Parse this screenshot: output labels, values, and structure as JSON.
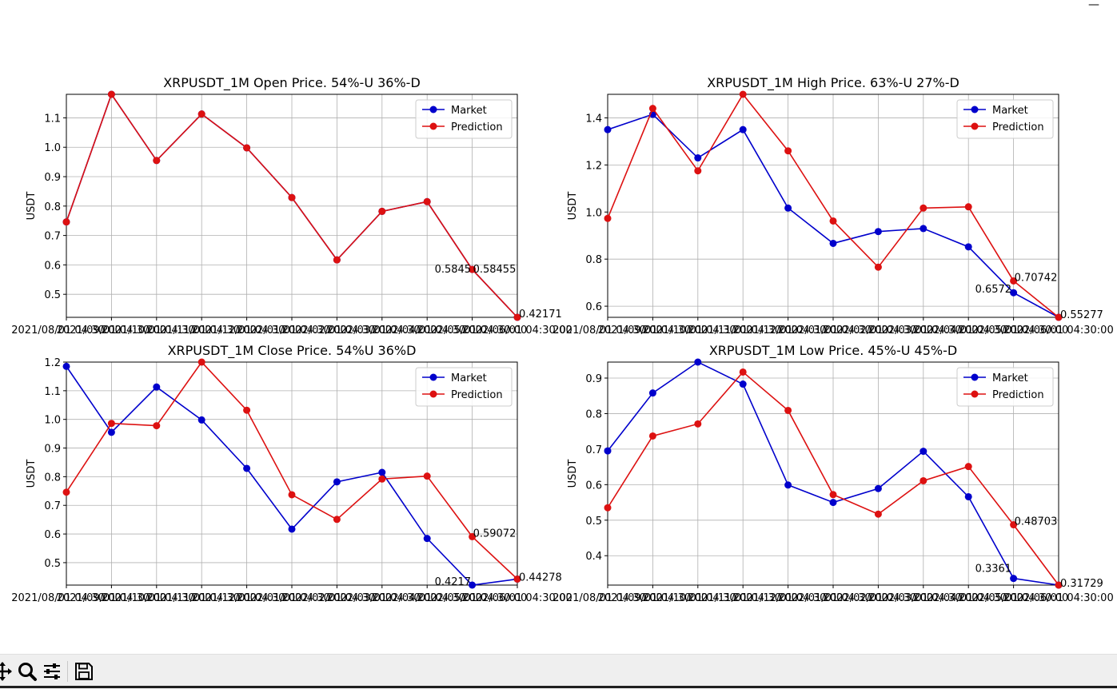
{
  "window": {
    "minimize_label": "—"
  },
  "toolbar": {
    "buttons": [
      {
        "name": "pan-icon"
      },
      {
        "name": "zoom-icon"
      },
      {
        "name": "configure-subplots-icon"
      },
      {
        "name": "save-icon"
      }
    ]
  },
  "colors": {
    "market": "#0000cc",
    "prediction": "#dd1111",
    "grid": "#b0b0b0"
  },
  "chart_data": [
    {
      "type": "line",
      "title": "XRPUSDT_1M Open Price. 54%-U 36%-D",
      "xlabel": "",
      "ylabel": "USDT",
      "x": [
        "2021/08/01 04:30:00",
        "2021/09/01 04:30:00",
        "2021/10/01 04:30:00",
        "2021/11/01 04:30:00",
        "2021/12/01 04:30:00",
        "2022/01/01 04:30:00",
        "2022/02/01 04:30:00",
        "2022/03/01 04:30:00",
        "2022/04/01 04:30:00",
        "2022/05/01 04:30:00",
        "2022/06/01 04:30:00"
      ],
      "ylim": [
        0.42171,
        1.18
      ],
      "yticks": [
        0.5,
        0.6,
        0.7,
        0.8,
        0.9,
        1.0,
        1.1
      ],
      "ytick_labels": [
        "0.5",
        "0.6",
        "0.7",
        "0.8",
        "0.9",
        "1.0",
        "1.1"
      ],
      "series": [
        {
          "name": "Market",
          "values": [
            0.746,
            1.18,
            0.955,
            1.113,
            0.998,
            0.829,
            0.617,
            0.782,
            0.815,
            0.5845,
            0.4217
          ]
        },
        {
          "name": "Prediction",
          "values": [
            0.746,
            1.18,
            0.955,
            1.113,
            0.998,
            0.829,
            0.617,
            0.782,
            0.815,
            0.58455,
            0.42171
          ]
        }
      ],
      "annotations": [
        "0.5845",
        "0.58455",
        "0.42171"
      ],
      "legend": "top-right"
    },
    {
      "type": "line",
      "title": "XRPUSDT_1M High Price. 63%-U 27%-D",
      "xlabel": "",
      "ylabel": "USDT",
      "x": [
        "2021/08/01 04:30:00",
        "2021/09/01 04:30:00",
        "2021/10/01 04:30:00",
        "2021/11/01 04:30:00",
        "2021/12/01 04:30:00",
        "2022/01/01 04:30:00",
        "2022/02/01 04:30:00",
        "2022/03/01 04:30:00",
        "2022/04/01 04:30:00",
        "2022/05/01 04:30:00",
        "2022/06/01 04:30:00"
      ],
      "ylim": [
        0.55277,
        1.5
      ],
      "yticks": [
        0.6,
        0.8,
        1.0,
        1.2,
        1.4
      ],
      "ytick_labels": [
        "0.6",
        "0.8",
        "1.0",
        "1.2",
        "1.4"
      ],
      "series": [
        {
          "name": "Market",
          "values": [
            1.35,
            1.415,
            1.23,
            1.35,
            1.017,
            0.867,
            0.917,
            0.93,
            0.852,
            0.6572,
            0.5528
          ]
        },
        {
          "name": "Prediction",
          "values": [
            0.973,
            1.44,
            1.175,
            1.5,
            1.26,
            0.962,
            0.766,
            1.017,
            1.022,
            0.70742,
            0.55277
          ]
        }
      ],
      "annotations": [
        "0.6572",
        "0.70742",
        "0.55277"
      ],
      "legend": "top-right"
    },
    {
      "type": "line",
      "title": "XRPUSDT_1M Close Price. 54%U 36%D",
      "xlabel": "",
      "ylabel": "USDT",
      "x": [
        "2021/08/01 04:30:00",
        "2021/09/01 04:30:00",
        "2021/10/01 04:30:00",
        "2021/11/01 04:30:00",
        "2021/12/01 04:30:00",
        "2022/01/01 04:30:00",
        "2022/02/01 04:30:00",
        "2022/03/01 04:30:00",
        "2022/04/01 04:30:00",
        "2022/05/01 04:30:00",
        "2022/06/01 04:30:00"
      ],
      "ylim": [
        0.4217,
        1.2
      ],
      "yticks": [
        0.5,
        0.6,
        0.7,
        0.8,
        0.9,
        1.0,
        1.1,
        1.2
      ],
      "ytick_labels": [
        "0.5",
        "0.6",
        "0.7",
        "0.8",
        "0.9",
        "1.0",
        "1.1",
        "1.2"
      ],
      "series": [
        {
          "name": "Market",
          "values": [
            1.185,
            0.955,
            1.113,
            0.998,
            0.829,
            0.617,
            0.782,
            0.815,
            0.5845,
            0.4217,
            0.44278
          ]
        },
        {
          "name": "Prediction",
          "values": [
            0.746,
            0.986,
            0.978,
            1.2,
            1.032,
            0.737,
            0.651,
            0.792,
            0.802,
            0.59072,
            0.44278
          ]
        }
      ],
      "annotations": [
        "0.59072",
        "0.4217",
        "0.44278"
      ],
      "legend": "top-right"
    },
    {
      "type": "line",
      "title": "XRPUSDT_1M Low Price. 45%-U 45%-D",
      "xlabel": "",
      "ylabel": "USDT",
      "x": [
        "2021/08/01 04:30:00",
        "2021/09/01 04:30:00",
        "2021/10/01 04:30:00",
        "2021/11/01 04:30:00",
        "2021/12/01 04:30:00",
        "2022/01/01 04:30:00",
        "2022/02/01 04:30:00",
        "2022/03/01 04:30:00",
        "2022/04/01 04:30:00",
        "2022/05/01 04:30:00",
        "2022/06/01 04:30:00"
      ],
      "ylim": [
        0.31729,
        0.945
      ],
      "yticks": [
        0.4,
        0.5,
        0.6,
        0.7,
        0.8,
        0.9
      ],
      "ytick_labels": [
        "0.4",
        "0.5",
        "0.6",
        "0.7",
        "0.8",
        "0.9"
      ],
      "series": [
        {
          "name": "Market",
          "values": [
            0.695,
            0.858,
            0.945,
            0.883,
            0.599,
            0.55,
            0.589,
            0.694,
            0.566,
            0.3361,
            0.3173
          ]
        },
        {
          "name": "Prediction",
          "values": [
            0.535,
            0.737,
            0.771,
            0.917,
            0.809,
            0.572,
            0.517,
            0.611,
            0.651,
            0.48703,
            0.31729
          ]
        }
      ],
      "annotations": [
        "0.3361",
        "0.48703",
        "0.31729"
      ],
      "legend": "top-right"
    }
  ]
}
